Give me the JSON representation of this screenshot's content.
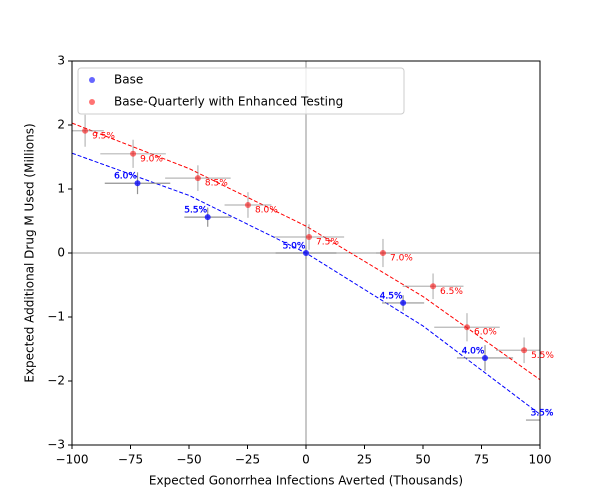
{
  "chart_data": {
    "type": "scatter",
    "x_label": "Expected Gonorrhea Infections Averted (Thousands)",
    "y_label": "Expected Additional Drug M Used (Millions)",
    "xlim": [
      -100,
      100
    ],
    "ylim": [
      -3,
      3
    ],
    "xticks": [
      {
        "value": -100,
        "label": "−100"
      },
      {
        "value": -75,
        "label": "−75"
      },
      {
        "value": -50,
        "label": "−50"
      },
      {
        "value": -25,
        "label": "−25"
      },
      0,
      25,
      50,
      75,
      100
    ],
    "yticks": [
      {
        "value": -3,
        "label": "−3"
      },
      {
        "value": -2,
        "label": "−2"
      },
      {
        "value": -1,
        "label": "−1"
      },
      0,
      1,
      2,
      3
    ],
    "hline": 0,
    "vline": 0,
    "legend": "upper left",
    "errorbar_color": "#888888",
    "series": [
      {
        "name": "Base",
        "color": "#0000ff",
        "x": [
          -72,
          -42,
          0,
          41.5,
          76.5,
          106
        ],
        "values": [
          1.09,
          0.56,
          0,
          -0.78,
          -1.64,
          -2.61
        ],
        "xerr": [
          14,
          10,
          13,
          9,
          12,
          12
        ],
        "yerr": [
          0.17,
          0.15,
          0.1,
          0.12,
          0.2,
          0.15
        ],
        "labels": [
          "6.0%",
          "5.5%",
          "5.0%",
          "4.5%",
          "4.0%",
          "3.5%"
        ],
        "fit_x": [
          -100,
          -50,
          0,
          50,
          100
        ],
        "fit_values": [
          1.56,
          0.9,
          0,
          -1.14,
          -2.52
        ]
      },
      {
        "name": "Base-Quarterly with Enhanced Testing",
        "color": "#ff0000",
        "x": [
          -94.4,
          -73.9,
          -46.2,
          -24.8,
          1.3,
          32.9,
          54.3,
          68.8,
          93.2
        ],
        "values": [
          1.91,
          1.55,
          1.17,
          0.75,
          0.25,
          0.0,
          -0.52,
          -1.16,
          -1.52
        ],
        "xerr": [
          8,
          14,
          14,
          10,
          15,
          3,
          13,
          14,
          12
        ],
        "yerr": [
          0.25,
          0.22,
          0.2,
          0.2,
          0.2,
          0.22,
          0.2,
          0.22,
          0.2
        ],
        "labels": [
          "9.5%",
          "9.0%",
          "8.5%",
          "8.0%",
          "7.5%",
          "7.0%",
          "6.5%",
          "6.0%",
          "5.5%"
        ],
        "fit_x": [
          -100,
          -50,
          0,
          50,
          100
        ],
        "fit_values": [
          2.03,
          1.32,
          0.42,
          -0.68,
          -1.98
        ]
      }
    ]
  }
}
